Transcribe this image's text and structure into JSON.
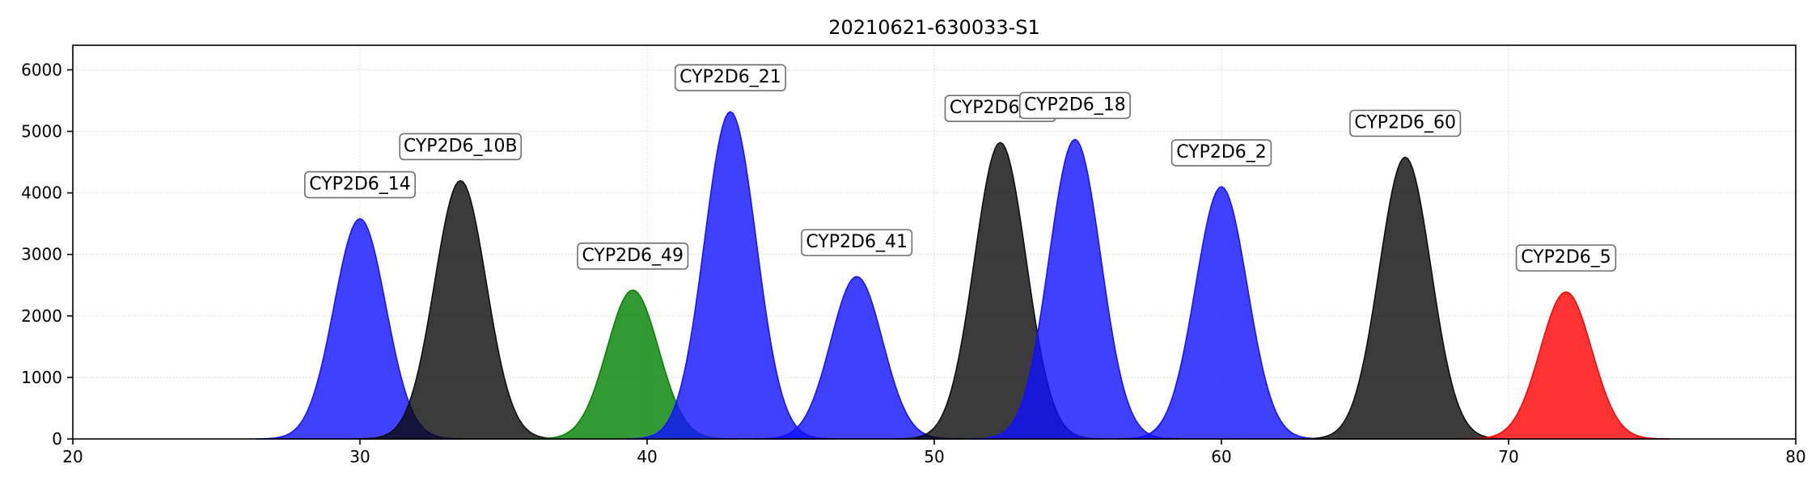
{
  "chart_data": {
    "type": "area",
    "title": "20210621-630033-S1",
    "xlabel": "",
    "ylabel": "",
    "xlim": [
      20,
      80
    ],
    "ylim": [
      0,
      6400
    ],
    "xticks": [
      20,
      30,
      40,
      50,
      60,
      70,
      80
    ],
    "yticks": [
      0,
      1000,
      2000,
      3000,
      4000,
      5000,
      6000
    ],
    "grid": true,
    "peaks": [
      {
        "label": "CYP2D6_14",
        "center": 30.0,
        "height": 3580,
        "color": "#1010ff"
      },
      {
        "label": "CYP2D6_10B",
        "center": 33.5,
        "height": 4200,
        "color": "#0a0a0a"
      },
      {
        "label": "CYP2D6_49",
        "center": 39.5,
        "height": 2420,
        "color": "#008000"
      },
      {
        "label": "CYP2D6_21",
        "center": 42.9,
        "height": 5320,
        "color": "#1010ff"
      },
      {
        "label": "CYP2D6_41",
        "center": 47.3,
        "height": 2640,
        "color": "#1010ff"
      },
      {
        "label": "CYP2D6_52",
        "center": 52.3,
        "height": 4820,
        "color": "#0a0a0a"
      },
      {
        "label": "CYP2D6_18",
        "center": 54.9,
        "height": 4870,
        "color": "#1010ff"
      },
      {
        "label": "CYP2D6_2",
        "center": 60.0,
        "height": 4100,
        "color": "#1010ff"
      },
      {
        "label": "CYP2D6_60",
        "center": 66.4,
        "height": 4580,
        "color": "#0a0a0a"
      },
      {
        "label": "CYP2D6_5",
        "center": 72.0,
        "height": 2390,
        "color": "#ff0000"
      }
    ]
  }
}
